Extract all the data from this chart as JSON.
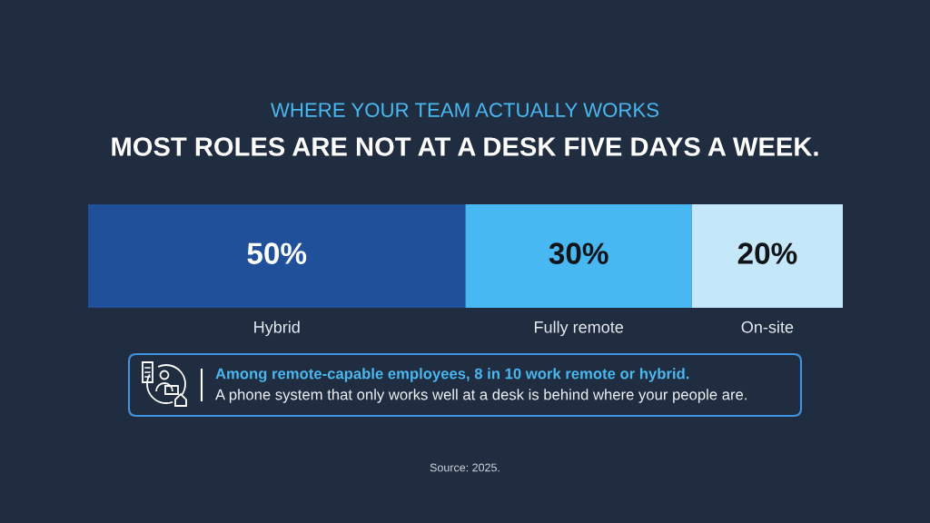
{
  "chart_data": {
    "type": "bar",
    "orientation": "horizontal",
    "stacked": true,
    "title": "WHERE YOUR TEAM ACTUALLY WORKS",
    "subtitle": "MOST ROLES ARE NOT AT A DESK FIVE DAYS A WEEK.",
    "categories": [
      null
    ],
    "series": [
      {
        "name": "Hybrid",
        "color": "#20509a",
        "values": [
          50
        ],
        "value_labels": [
          "50%"
        ]
      },
      {
        "name": "Fully remote",
        "color": "#47b8f2",
        "values": [
          30
        ],
        "value_labels": [
          "30%"
        ]
      },
      {
        "name": "On-site",
        "color": "#c4e7fa",
        "values": [
          20
        ],
        "value_labels": [
          "20%"
        ]
      }
    ],
    "xlim": [
      0,
      100
    ],
    "annotations": [
      "Among remote-capable employees, 8 in 10 work remote or hybrid.",
      "A phone system that only works well at a desk is behind where your people are.",
      "Source: 2025."
    ]
  }
}
